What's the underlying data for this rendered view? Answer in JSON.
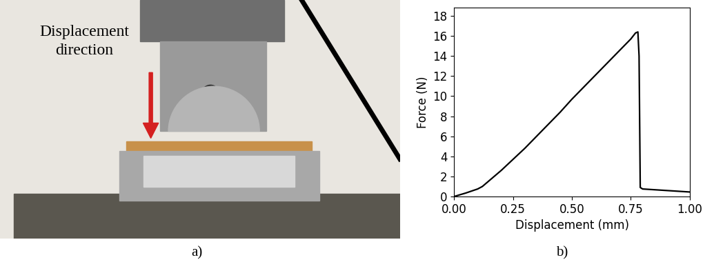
{
  "chart_data": {
    "type": "line",
    "caption": "b)",
    "x_label": "Displacement (mm)",
    "y_label": "Force (N)",
    "x": [
      0.0,
      0.05,
      0.1,
      0.12,
      0.15,
      0.2,
      0.25,
      0.3,
      0.35,
      0.4,
      0.45,
      0.5,
      0.55,
      0.6,
      0.65,
      0.7,
      0.75,
      0.77,
      0.78,
      0.785,
      0.79,
      0.8,
      0.9,
      1.0
    ],
    "values": [
      0.0,
      0.35,
      0.75,
      1.0,
      1.6,
      2.6,
      3.7,
      4.8,
      6.0,
      7.2,
      8.4,
      9.7,
      10.9,
      12.1,
      13.3,
      14.5,
      15.7,
      16.3,
      16.4,
      14.0,
      0.9,
      0.75,
      0.6,
      0.45
    ],
    "color": "#000000",
    "xlim": [
      0,
      1
    ],
    "ylim": [
      0,
      18.8
    ],
    "xticks": [
      {
        "value": 0,
        "label": "0.00"
      },
      {
        "value": 0.25,
        "label": "0.25"
      },
      {
        "value": 0.5,
        "label": "0.50"
      },
      {
        "value": 0.75,
        "label": "0.75"
      },
      {
        "value": 1,
        "label": "1.00"
      }
    ],
    "yticks": [
      0,
      2,
      4,
      6,
      8,
      10,
      12,
      14,
      16,
      18
    ]
  },
  "photo": {
    "label": "a)",
    "annotation": "Displacement\ndirection",
    "arrow_color": "#d42020"
  }
}
